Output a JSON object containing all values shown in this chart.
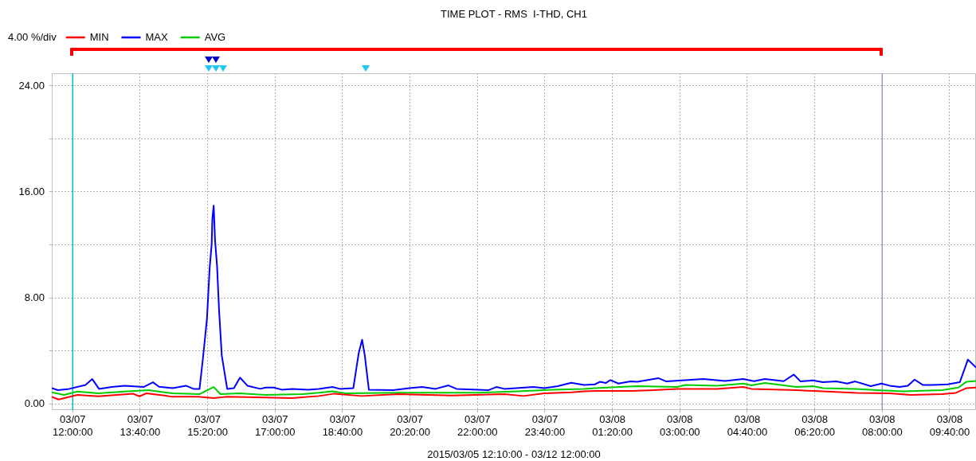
{
  "chart_data": {
    "type": "line",
    "title": "TIME PLOT - RMS  I-THD, CH1",
    "xlabel": "2015/03/05 12:10:00 - 03/12 12:00:00",
    "annotations": [
      "4.00 %/div"
    ],
    "legend": "top left",
    "grid": true,
    "marker": "none",
    "line_style": "solid",
    "xlim": [
      "2015-03-07T11:29",
      "2015-03-08T10:19"
    ],
    "xticks": [
      {
        "value": "2015-03-07T12:00",
        "label": "03/07 12:00:00"
      },
      {
        "value": "2015-03-07T13:40",
        "label": "03/07 13:40:00"
      },
      {
        "value": "2015-03-07T15:20",
        "label": "03/07 15:20:00"
      },
      {
        "value": "2015-03-07T17:00",
        "label": "03/07 17:00:00"
      },
      {
        "value": "2015-03-07T18:40",
        "label": "03/07 18:40:00"
      },
      {
        "value": "2015-03-07T20:20",
        "label": "03/07 20:20:00"
      },
      {
        "value": "2015-03-07T22:00",
        "label": "03/07 22:00:00"
      },
      {
        "value": "2015-03-07T23:40",
        "label": "03/07 23:40:00"
      },
      {
        "value": "2015-03-08T01:20",
        "label": "03/08 01:20:00"
      },
      {
        "value": "2015-03-08T03:00",
        "label": "03/08 03:00:00"
      },
      {
        "value": "2015-03-08T04:40",
        "label": "03/08 04:40:00"
      },
      {
        "value": "2015-03-08T06:20",
        "label": "03/08 06:20:00"
      },
      {
        "value": "2015-03-08T08:00",
        "label": "03/08 08:00:00"
      },
      {
        "value": "2015-03-08T09:40",
        "label": "03/08 09:40:00"
      }
    ],
    "ylim": [
      -0.48,
      24.96
    ],
    "yticks": [
      {
        "value": 0,
        "label": "0.00"
      },
      {
        "value": 4,
        "label": null
      },
      {
        "value": 8,
        "label": "8.00"
      },
      {
        "value": 12,
        "label": null
      },
      {
        "value": 16,
        "label": "16.00"
      },
      {
        "value": 20,
        "label": null
      },
      {
        "value": 24,
        "label": "24.00"
      }
    ],
    "ref_lines": [
      {
        "axis": "x",
        "value": "2015-03-07T12:00",
        "color": "#00c0c8"
      },
      {
        "axis": "x",
        "value": "2015-03-08T08:00",
        "color": "#9898d0"
      }
    ],
    "series": [
      {
        "name": "MIN",
        "color": "#ff0000",
        "x": [
          "2015-03-07T11:29",
          "2015-03-07T11:39",
          "2015-03-07T12:07",
          "2015-03-07T12:38",
          "2015-03-07T13:29",
          "2015-03-07T13:39",
          "2015-03-07T13:49",
          "2015-03-07T14:16",
          "2015-03-07T14:28",
          "2015-03-07T15:08",
          "2015-03-07T15:29",
          "2015-03-07T15:47",
          "2015-03-07T16:46",
          "2015-03-07T17:25",
          "2015-03-07T18:05",
          "2015-03-07T18:28",
          "2015-03-07T19:08",
          "2015-03-07T20:03",
          "2015-03-07T21:22",
          "2015-03-07T22:40",
          "2015-03-07T23:08",
          "2015-03-07T23:39",
          "2015-03-08T00:19",
          "2015-03-08T00:38",
          "2015-03-08T00:54",
          "2015-03-08T01:49",
          "2015-03-08T02:20",
          "2015-03-08T02:56",
          "2015-03-08T03:55",
          "2015-03-08T04:34",
          "2015-03-08T04:46",
          "2015-03-08T05:53",
          "2015-03-08T06:32",
          "2015-03-08T07:23",
          "2015-03-08T08:11",
          "2015-03-08T08:42",
          "2015-03-08T09:29",
          "2015-03-08T09:49",
          "2015-03-08T10:05",
          "2015-03-08T10:19"
        ],
        "values": [
          0.52,
          0.32,
          0.66,
          0.56,
          0.76,
          0.56,
          0.78,
          0.62,
          0.52,
          0.52,
          0.42,
          0.52,
          0.46,
          0.42,
          0.58,
          0.76,
          0.58,
          0.72,
          0.62,
          0.72,
          0.58,
          0.78,
          0.86,
          0.93,
          0.97,
          0.97,
          1.02,
          1.12,
          1.12,
          1.26,
          1.12,
          1.02,
          0.93,
          0.82,
          0.78,
          0.66,
          0.72,
          0.82,
          1.18,
          1.22
        ]
      },
      {
        "name": "MAX",
        "color": "#0000ff",
        "x": [
          "2015-03-07T11:29",
          "2015-03-07T11:38",
          "2015-03-07T11:55",
          "2015-03-07T12:19",
          "2015-03-07T12:29",
          "2015-03-07T12:39",
          "2015-03-07T12:58",
          "2015-03-07T13:17",
          "2015-03-07T13:45",
          "2015-03-07T13:59",
          "2015-03-07T14:08",
          "2015-03-07T14:28",
          "2015-03-07T14:48",
          "2015-03-07T14:59",
          "2015-03-07T15:08",
          "2015-03-07T15:13",
          "2015-03-07T15:19",
          "2015-03-07T15:23",
          "2015-03-07T15:26",
          "2015-03-07T15:27",
          "2015-03-07T15:29",
          "2015-03-07T15:31",
          "2015-03-07T15:34",
          "2015-03-07T15:37",
          "2015-03-07T15:41",
          "2015-03-07T15:49",
          "2015-03-07T15:59",
          "2015-03-07T16:08",
          "2015-03-07T16:19",
          "2015-03-07T16:38",
          "2015-03-07T16:46",
          "2015-03-07T16:58",
          "2015-03-07T17:10",
          "2015-03-07T17:25",
          "2015-03-07T17:49",
          "2015-03-07T18:05",
          "2015-03-07T18:25",
          "2015-03-07T18:36",
          "2015-03-07T18:56",
          "2015-03-07T19:04",
          "2015-03-07T19:09",
          "2015-03-07T19:13",
          "2015-03-07T19:19",
          "2015-03-07T19:55",
          "2015-03-07T20:19",
          "2015-03-07T20:38",
          "2015-03-07T20:58",
          "2015-03-07T21:17",
          "2015-03-07T21:29",
          "2015-03-07T22:16",
          "2015-03-07T22:28",
          "2015-03-07T22:40",
          "2015-03-07T23:23",
          "2015-03-07T23:39",
          "2015-03-07T23:59",
          "2015-03-08T00:19",
          "2015-03-08T00:38",
          "2015-03-08T00:54",
          "2015-03-08T01:02",
          "2015-03-08T01:10",
          "2015-03-08T01:17",
          "2015-03-08T01:29",
          "2015-03-08T01:47",
          "2015-03-08T01:57",
          "2015-03-08T02:28",
          "2015-03-08T02:40",
          "2015-03-08T03:08",
          "2015-03-08T03:35",
          "2015-03-08T04:07",
          "2015-03-08T04:34",
          "2015-03-08T04:50",
          "2015-03-08T05:06",
          "2015-03-08T05:34",
          "2015-03-08T05:49",
          "2015-03-08T05:59",
          "2015-03-08T06:17",
          "2015-03-08T06:32",
          "2015-03-08T06:52",
          "2015-03-08T07:08",
          "2015-03-08T07:20",
          "2015-03-08T07:43",
          "2015-03-08T07:59",
          "2015-03-08T08:11",
          "2015-03-08T08:26",
          "2015-03-08T08:38",
          "2015-03-08T08:48",
          "2015-03-08T09:00",
          "2015-03-08T09:14",
          "2015-03-08T09:37",
          "2015-03-08T09:55",
          "2015-03-08T10:07",
          "2015-03-08T10:19"
        ],
        "values": [
          1.18,
          1.02,
          1.12,
          1.42,
          1.86,
          1.12,
          1.26,
          1.36,
          1.26,
          1.62,
          1.28,
          1.18,
          1.36,
          1.12,
          1.12,
          3.4,
          6.4,
          10.24,
          12.05,
          13.95,
          14.96,
          12.35,
          10.4,
          7.04,
          3.63,
          1.12,
          1.18,
          1.97,
          1.36,
          1.12,
          1.22,
          1.22,
          1.06,
          1.12,
          1.06,
          1.12,
          1.26,
          1.12,
          1.18,
          3.83,
          4.83,
          3.63,
          1.06,
          1.02,
          1.18,
          1.26,
          1.12,
          1.38,
          1.12,
          1.02,
          1.26,
          1.12,
          1.26,
          1.18,
          1.32,
          1.58,
          1.42,
          1.46,
          1.66,
          1.56,
          1.78,
          1.52,
          1.68,
          1.66,
          1.93,
          1.68,
          1.78,
          1.86,
          1.72,
          1.86,
          1.7,
          1.86,
          1.7,
          2.2,
          1.68,
          1.76,
          1.62,
          1.68,
          1.52,
          1.68,
          1.32,
          1.52,
          1.36,
          1.26,
          1.36,
          1.82,
          1.42,
          1.42,
          1.46,
          1.62,
          3.33,
          2.73
        ]
      },
      {
        "name": "AVG",
        "color": "#00cc00",
        "x": [
          "2015-03-07T11:29",
          "2015-03-07T11:47",
          "2015-03-07T12:07",
          "2015-03-07T12:38",
          "2015-03-07T13:17",
          "2015-03-07T13:53",
          "2015-03-07T14:16",
          "2015-03-07T14:28",
          "2015-03-07T15:08",
          "2015-03-07T15:29",
          "2015-03-07T15:39",
          "2015-03-07T16:07",
          "2015-03-07T16:46",
          "2015-03-07T17:41",
          "2015-03-07T18:05",
          "2015-03-07T18:25",
          "2015-03-07T18:44",
          "2015-03-07T20:03",
          "2015-03-07T22:01",
          "2015-03-07T23:00",
          "2015-03-07T23:51",
          "2015-03-08T00:38",
          "2015-03-08T00:54",
          "2015-03-08T01:57",
          "2015-03-08T02:56",
          "2015-03-08T03:08",
          "2015-03-08T03:55",
          "2015-03-08T04:34",
          "2015-03-08T04:46",
          "2015-03-08T05:06",
          "2015-03-08T05:53",
          "2015-03-08T06:17",
          "2015-03-08T06:32",
          "2015-03-08T07:20",
          "2015-03-08T07:52",
          "2015-03-08T08:31",
          "2015-03-08T09:29",
          "2015-03-08T09:53",
          "2015-03-08T10:05",
          "2015-03-08T10:19"
        ],
        "values": [
          0.86,
          0.66,
          0.92,
          0.78,
          0.92,
          1.02,
          0.86,
          0.78,
          0.72,
          1.26,
          0.72,
          0.78,
          0.66,
          0.72,
          0.83,
          0.93,
          0.78,
          0.83,
          0.83,
          0.93,
          1.06,
          1.12,
          1.18,
          1.32,
          1.26,
          1.42,
          1.36,
          1.52,
          1.38,
          1.56,
          1.26,
          1.32,
          1.18,
          1.12,
          1.02,
          0.93,
          1.02,
          1.22,
          1.66,
          1.72
        ]
      }
    ]
  }
}
